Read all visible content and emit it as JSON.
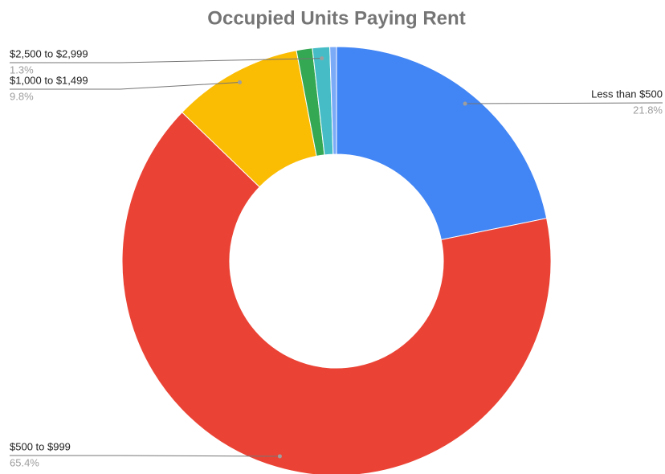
{
  "chart_data": {
    "type": "donut",
    "title": "Occupied Units Paying Rent",
    "categories": [
      "Less than $500",
      "$500 to $999",
      "$1,000 to $1,499",
      null,
      "$2,500 to $2,999",
      null
    ],
    "values": [
      21.8,
      65.4,
      9.8,
      1.2,
      1.3,
      0.5
    ],
    "value_labels": [
      "21.8%",
      "65.4%",
      "9.8%",
      null,
      "1.3%",
      null
    ],
    "colors": [
      "#4285f4",
      "#ea4335",
      "#fbbc04",
      "#34a853",
      "#46bdc6",
      "#7baaf7"
    ]
  }
}
